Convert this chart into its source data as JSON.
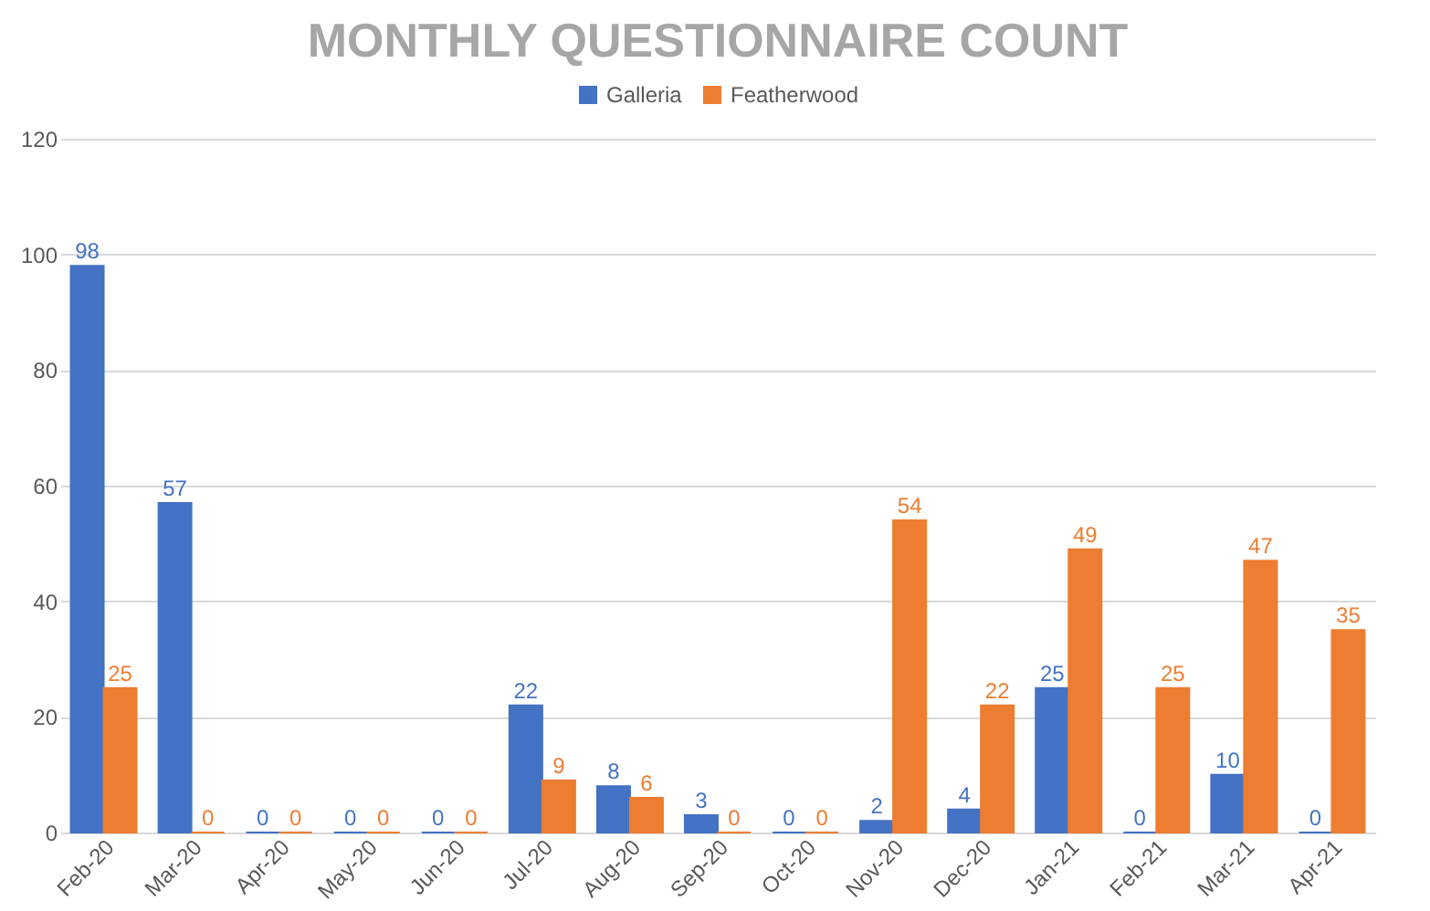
{
  "chart_data": {
    "type": "bar",
    "title": "MONTHLY QUESTIONNAIRE COUNT",
    "categories": [
      "Feb-20",
      "Mar-20",
      "Apr-20",
      "May-20",
      "Jun-20",
      "Jul-20",
      "Aug-20",
      "Sep-20",
      "Oct-20",
      "Nov-20",
      "Dec-20",
      "Jan-21",
      "Feb-21",
      "Mar-21",
      "Apr-21"
    ],
    "series": [
      {
        "name": "Galleria",
        "color": "#4472c4",
        "values": [
          98,
          57,
          0,
          0,
          0,
          22,
          8,
          3,
          0,
          2,
          4,
          25,
          0,
          10,
          0
        ]
      },
      {
        "name": "Featherwood",
        "color": "#ed7d31",
        "values": [
          25,
          0,
          0,
          0,
          0,
          9,
          6,
          0,
          0,
          54,
          22,
          49,
          25,
          47,
          35
        ]
      }
    ],
    "ylim": [
      0,
      120
    ],
    "yticks": [
      0,
      20,
      40,
      60,
      80,
      100,
      120
    ],
    "grid": "y",
    "legend": "top",
    "data_labels": true
  }
}
